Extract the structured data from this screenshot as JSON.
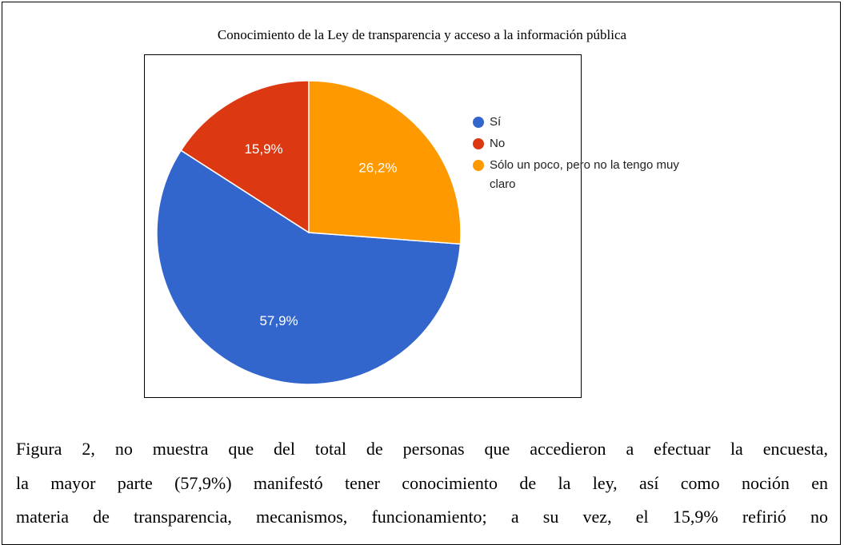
{
  "chart_data": {
    "type": "pie",
    "title": "Conocimiento de la Ley de transparencia y acceso a la información pública",
    "categories": [
      "Sí",
      "No",
      "Sólo un poco, pero no la tengo muy claro"
    ],
    "values": [
      57.9,
      15.9,
      26.2
    ],
    "value_labels": [
      "57,9%",
      "15,9%",
      "26,2%"
    ],
    "colors": [
      "#3366cc",
      "#dc3912",
      "#ff9900"
    ],
    "legend": "right"
  },
  "caption": [
    "Figura 2, no muestra que del total de personas que accedieron a efectuar la encuesta,",
    "la mayor parte (57,9%) manifestó tener conocimiento de la ley, así como noción en",
    "materia de transparencia, mecanismos, funcionamiento; a su vez, el 15,9% refirió no"
  ]
}
